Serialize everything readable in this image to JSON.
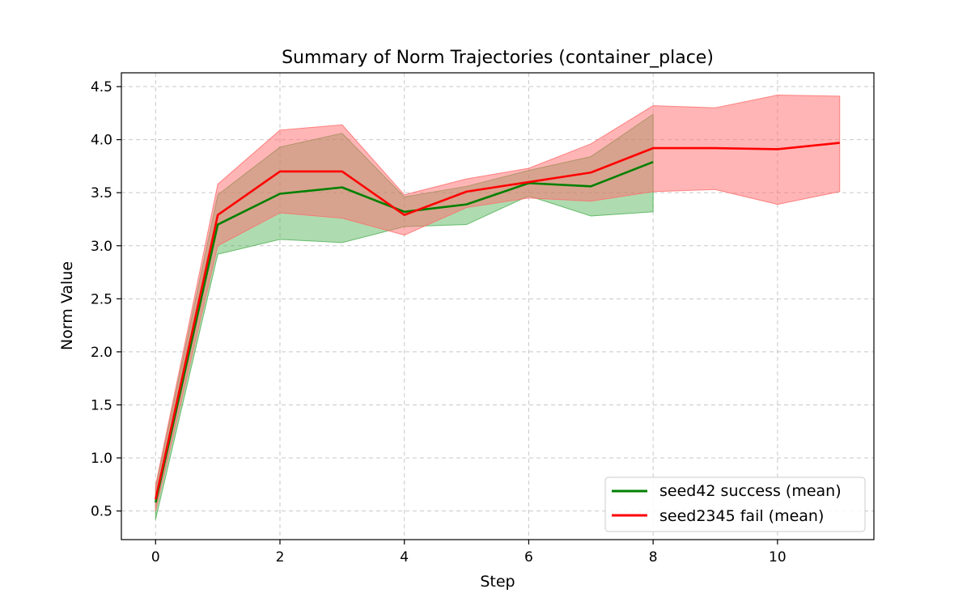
{
  "chart_data": {
    "type": "line",
    "title": "Summary of Norm Trajectories (container_place)",
    "xlabel": "Step",
    "ylabel": "Norm Value",
    "xlim": [
      -0.55,
      11.55
    ],
    "ylim": [
      0.23,
      4.63
    ],
    "xticks": [
      0,
      2,
      4,
      6,
      8,
      10
    ],
    "xtick_labels": [
      "0",
      "2",
      "4",
      "6",
      "8",
      "10"
    ],
    "yticks": [
      0.5,
      1.0,
      1.5,
      2.0,
      2.5,
      3.0,
      3.5,
      4.0,
      4.5
    ],
    "ytick_labels": [
      "0.5",
      "1.0",
      "1.5",
      "2.0",
      "2.5",
      "3.0",
      "3.5",
      "4.0",
      "4.5"
    ],
    "grid": true,
    "legend_position": "lower-right",
    "series": [
      {
        "name": "seed42 success (mean)",
        "color": "#008000",
        "band_color": "#4caf50",
        "x": [
          0,
          1,
          2,
          3,
          4,
          5,
          6,
          7,
          8
        ],
        "mean": [
          0.58,
          3.2,
          3.49,
          3.55,
          3.32,
          3.39,
          3.59,
          3.56,
          3.79
        ],
        "lower": [
          0.42,
          2.92,
          3.06,
          3.03,
          3.18,
          3.2,
          3.47,
          3.28,
          3.32
        ],
        "upper": [
          0.72,
          3.48,
          3.93,
          4.06,
          3.46,
          3.56,
          3.71,
          3.84,
          4.24
        ]
      },
      {
        "name": "seed2345 fail (mean)",
        "color": "#ff0000",
        "band_color": "#ff6b6b",
        "x": [
          0,
          1,
          2,
          3,
          4,
          5,
          6,
          7,
          8,
          9,
          10,
          11
        ],
        "mean": [
          0.61,
          3.29,
          3.7,
          3.7,
          3.29,
          3.51,
          3.6,
          3.69,
          3.92,
          3.92,
          3.91,
          3.97
        ],
        "lower": [
          0.5,
          3.0,
          3.31,
          3.26,
          3.1,
          3.36,
          3.45,
          3.42,
          3.51,
          3.53,
          3.39,
          3.51
        ],
        "upper": [
          0.74,
          3.58,
          4.09,
          4.14,
          3.48,
          3.63,
          3.73,
          3.96,
          4.32,
          4.3,
          4.42,
          4.41
        ]
      }
    ]
  }
}
